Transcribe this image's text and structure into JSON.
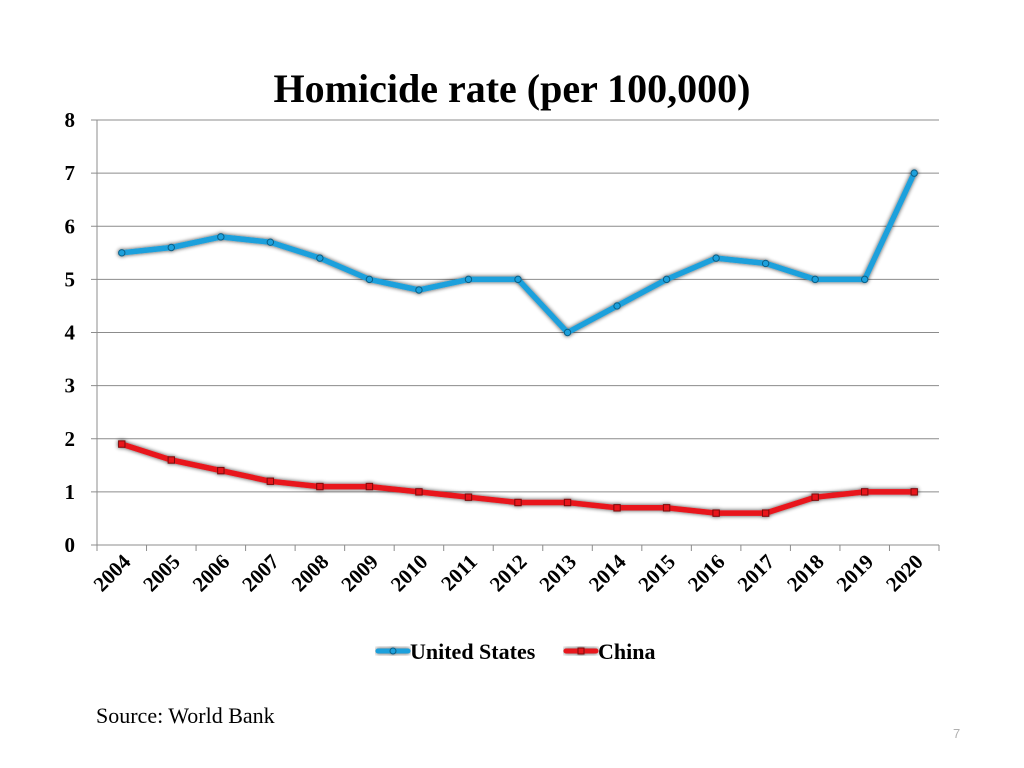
{
  "chart_data": {
    "type": "line",
    "title": "Homicide rate (per 100,000)",
    "x": [
      "2004",
      "2005",
      "2006",
      "2007",
      "2008",
      "2009",
      "2010",
      "2011",
      "2012",
      "2013",
      "2014",
      "2015",
      "2016",
      "2017",
      "2018",
      "2019",
      "2020"
    ],
    "series": [
      {
        "name": "United States",
        "color": "#1aa0dc",
        "values": [
          5.5,
          5.6,
          5.8,
          5.7,
          5.4,
          5.0,
          4.8,
          5.0,
          5.0,
          4.0,
          4.5,
          5.0,
          5.4,
          5.3,
          5.0,
          5.0,
          7.0
        ]
      },
      {
        "name": "China",
        "color": "#e8141a",
        "values": [
          1.9,
          1.6,
          1.4,
          1.2,
          1.1,
          1.1,
          1.0,
          0.9,
          0.8,
          0.8,
          0.7,
          0.7,
          0.6,
          0.6,
          0.9,
          1.0,
          1.0
        ]
      }
    ],
    "ylim": [
      0,
      8
    ],
    "yticks": [
      0,
      1,
      2,
      3,
      4,
      5,
      6,
      7,
      8
    ],
    "grid": true,
    "legend": "bottom"
  },
  "footer": {
    "source": "Source: World Bank",
    "page_number": "7"
  }
}
